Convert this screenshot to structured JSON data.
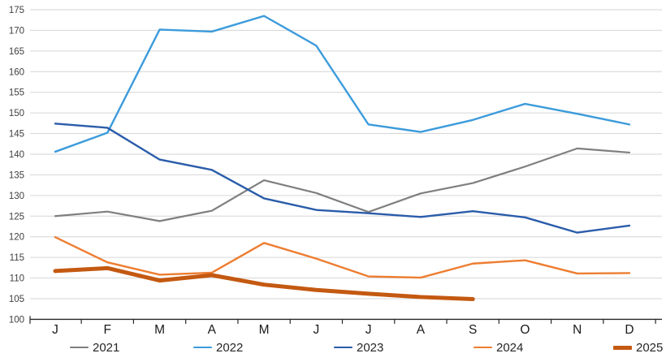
{
  "chart_data": {
    "type": "line",
    "title": "",
    "xlabel": "",
    "ylabel": "",
    "categories": [
      "J",
      "F",
      "M",
      "A",
      "M",
      "J",
      "J",
      "A",
      "S",
      "O",
      "N",
      "D"
    ],
    "y_axis": {
      "min": 100,
      "max": 175,
      "step": 5
    },
    "grid": "horizontal",
    "legend_position": "bottom",
    "colors": {
      "gridline": "#d6d6d6",
      "axis": "#262626",
      "tick_label": "#404040",
      "category_label": "#1a1a1a"
    },
    "series": [
      {
        "name": "2021",
        "color": "#7f7f7f",
        "stroke_width": 2.2,
        "values": [
          125.0,
          126.1,
          123.8,
          126.3,
          133.7,
          130.6,
          126.0,
          130.5,
          133.0,
          137.0,
          141.4,
          140.4
        ]
      },
      {
        "name": "2022",
        "color": "#3c9bdb",
        "stroke_width": 2.4,
        "values": [
          140.6,
          145.2,
          170.2,
          169.7,
          173.5,
          166.3,
          147.2,
          145.4,
          148.3,
          152.2,
          149.8,
          147.2
        ]
      },
      {
        "name": "2023",
        "color": "#2a5caa",
        "stroke_width": 2.4,
        "values": [
          147.4,
          146.4,
          138.7,
          136.2,
          129.3,
          126.5,
          125.7,
          124.8,
          126.2,
          124.7,
          121.0,
          122.7
        ]
      },
      {
        "name": "2024",
        "color": "#ed7d31",
        "stroke_width": 2.4,
        "values": [
          119.9,
          113.8,
          110.8,
          111.3,
          118.5,
          114.7,
          110.4,
          110.1,
          113.5,
          114.3,
          111.1,
          111.2
        ]
      },
      {
        "name": "2025",
        "color": "#c45911",
        "stroke_width": 5,
        "values": [
          111.7,
          112.4,
          109.4,
          110.7,
          108.4,
          107.1,
          106.2,
          105.4,
          104.9
        ]
      }
    ]
  }
}
